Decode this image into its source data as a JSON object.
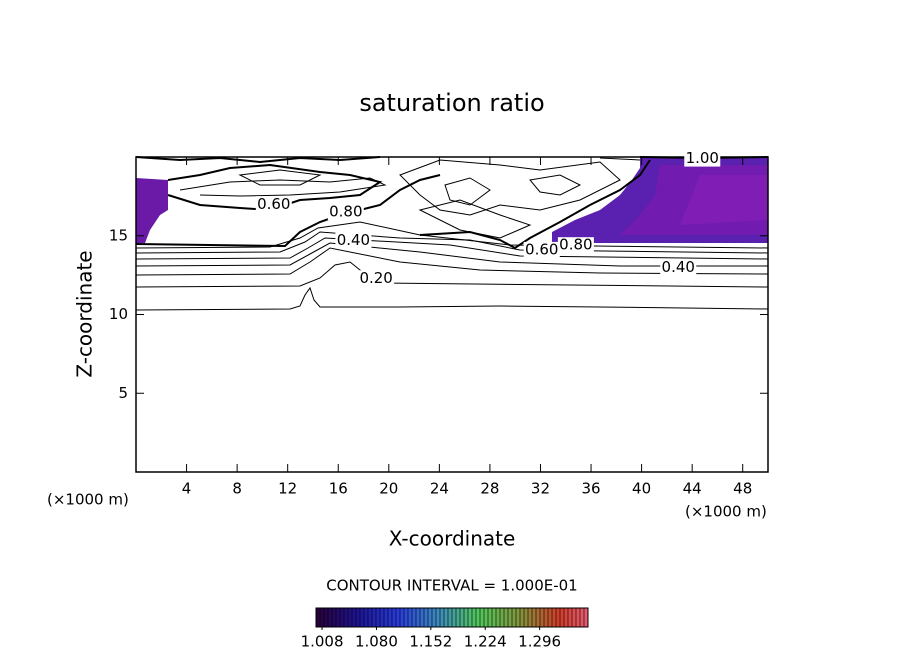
{
  "chart_data": {
    "type": "contour",
    "title": "saturation ratio",
    "xlabel": "X-coordinate",
    "ylabel": "Z-coordinate",
    "xunit": "(×1000 m)",
    "yunit": "(×1000 m)",
    "xlim": [
      0,
      50
    ],
    "xticks": [
      4,
      8,
      12,
      16,
      20,
      24,
      28,
      32,
      36,
      40,
      44,
      48
    ],
    "ylim": [
      0,
      20
    ],
    "yticks": [
      5,
      10,
      15
    ],
    "contour_labels": [
      {
        "value": 0.6,
        "label": "0.60",
        "x": 10.9,
        "y": 17.0
      },
      {
        "value": 0.8,
        "label": "0.80",
        "x": 16.6,
        "y": 16.5
      },
      {
        "value": 0.4,
        "label": "0.40",
        "x": 17.2,
        "y": 14.7
      },
      {
        "value": 0.2,
        "label": "0.20",
        "x": 19.0,
        "y": 12.3
      },
      {
        "value": 0.6,
        "label": "0.60",
        "x": 32.1,
        "y": 14.1
      },
      {
        "value": 0.8,
        "label": "0.80",
        "x": 34.8,
        "y": 14.4
      },
      {
        "value": 0.4,
        "label": "0.40",
        "x": 42.9,
        "y": 13.0
      },
      {
        "value": 1.0,
        "label": "1.00",
        "x": 44.8,
        "y": 19.9
      }
    ],
    "contour_interval": "CONTOUR INTERVAL = 1.000E-01",
    "clim": [
      1.0,
      1.36
    ],
    "cticks": [
      1.008,
      {
        "value": 1.08,
        "label": "1.080"
      },
      1.152,
      1.224,
      1.296
    ]
  }
}
